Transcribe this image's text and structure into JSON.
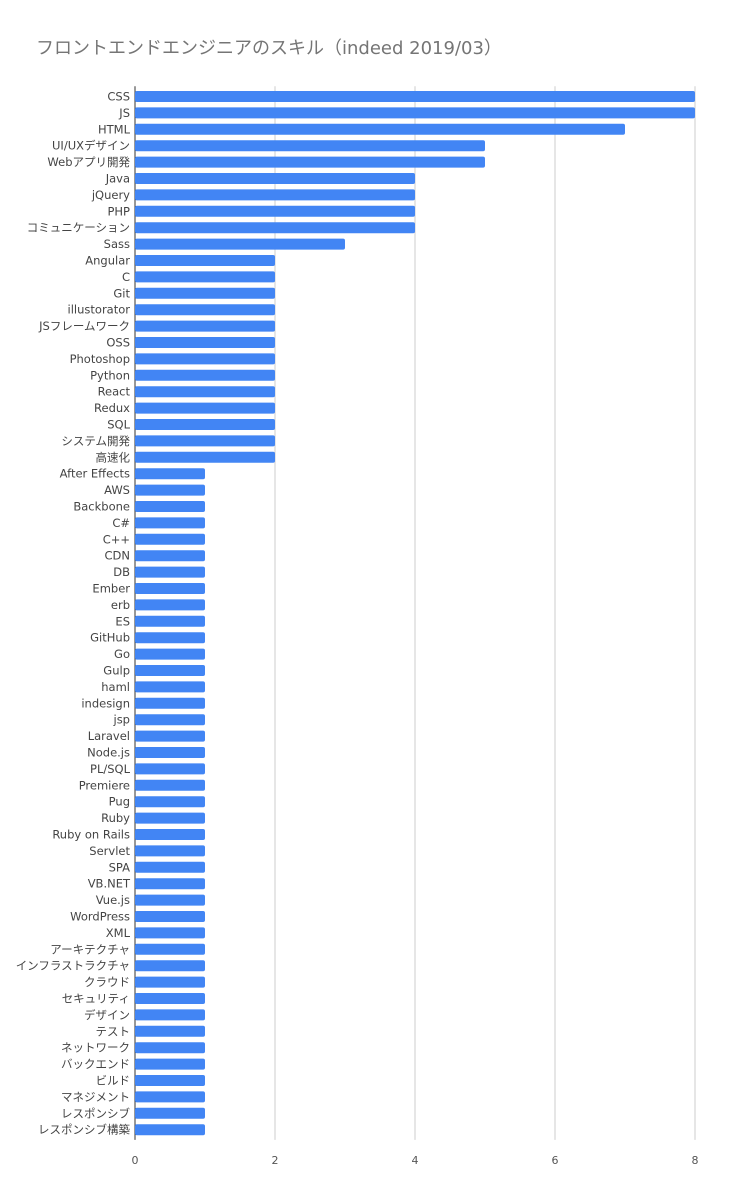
{
  "chart_data": {
    "type": "bar",
    "orientation": "horizontal",
    "title": "フロントエンドエンジニアのスキル（indeed 2019/03）",
    "xlabel": "",
    "ylabel": "",
    "xlim": [
      0,
      8
    ],
    "x_ticks": [
      "0",
      "2",
      "4",
      "6",
      "8"
    ],
    "grid": true,
    "legend": "none",
    "bar_color": "#4285f4",
    "categories": [
      "CSS",
      "JS",
      "HTML",
      "UI/UXデザイン",
      "Webアプリ開発",
      "Java",
      "jQuery",
      "PHP",
      "コミュニケーション",
      "Sass",
      "Angular",
      "C",
      "Git",
      "illustorator",
      "JSフレームワーク",
      "OSS",
      "Photoshop",
      "Python",
      "React",
      "Redux",
      "SQL",
      "システム開発",
      "高速化",
      "After Effects",
      "AWS",
      "Backbone",
      "C#",
      "C++",
      "CDN",
      "DB",
      "Ember",
      "erb",
      "ES",
      "GitHub",
      "Go",
      "Gulp",
      "haml",
      "indesign",
      "jsp",
      "Laravel",
      "Node.js",
      "PL/SQL",
      "Premiere",
      "Pug",
      "Ruby",
      "Ruby on Rails",
      "Servlet",
      "SPA",
      "VB.NET",
      "Vue.js",
      "WordPress",
      "XML",
      "アーキテクチャ",
      "インフラストラクチャ",
      "クラウド",
      "セキュリティ",
      "デザイン",
      "テスト",
      "ネットワーク",
      "バックエンド",
      "ビルド",
      "マネジメント",
      "レスポンシブ",
      "レスポンシブ構築"
    ],
    "values": [
      8,
      8,
      7,
      5,
      5,
      4,
      4,
      4,
      4,
      3,
      2,
      2,
      2,
      2,
      2,
      2,
      2,
      2,
      2,
      2,
      2,
      2,
      2,
      1,
      1,
      1,
      1,
      1,
      1,
      1,
      1,
      1,
      1,
      1,
      1,
      1,
      1,
      1,
      1,
      1,
      1,
      1,
      1,
      1,
      1,
      1,
      1,
      1,
      1,
      1,
      1,
      1,
      1,
      1,
      1,
      1,
      1,
      1,
      1,
      1,
      1,
      1,
      1,
      1
    ]
  }
}
